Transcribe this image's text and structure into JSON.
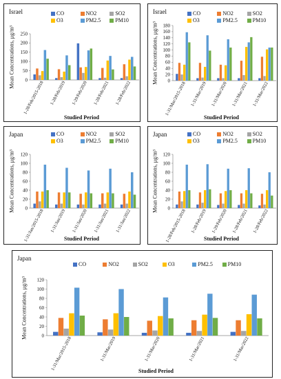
{
  "chart_data": [
    {
      "type": "bar",
      "country": "Israel",
      "title": "Israel",
      "categories": [
        "1-28/Feb/2015-2018",
        "1-28/Feb/2019",
        "1-29/Feb/2020",
        "1-28/Feb/2021",
        "1-28/Feb/2022"
      ],
      "series": [
        {
          "name": "CO",
          "color": "#4472C4",
          "values": [
            30,
            10,
            198,
            10,
            10
          ]
        },
        {
          "name": "NO2",
          "color": "#ED7D31",
          "values": [
            62,
            58,
            68,
            65,
            85
          ]
        },
        {
          "name": "SO2",
          "color": "#A5A5A5",
          "values": [
            25,
            15,
            38,
            12,
            20
          ]
        },
        {
          "name": "O3",
          "color": "#FFC000",
          "values": [
            48,
            45,
            70,
            105,
            110
          ]
        },
        {
          "name": "PM2.5",
          "color": "#5B9BD5",
          "values": [
            162,
            133,
            160,
            130,
            125
          ]
        },
        {
          "name": "PM10",
          "color": "#70AD47",
          "values": [
            115,
            80,
            170,
            57,
            73
          ]
        }
      ],
      "xlabel": "Studied Period",
      "ylabel": "Mean Concentrations, μg/m³",
      "ylim": [
        0,
        250
      ],
      "ticks": [
        0,
        50,
        100,
        150,
        200,
        250
      ],
      "legend": "top"
    },
    {
      "type": "bar",
      "country": "Israel",
      "title": "Israel",
      "categories": [
        "1-31/Mar/2015-2018",
        "1-31/Mar/2019",
        "1-31/Mar/2020",
        "1-31/Mar/2021",
        "1-31/Mar/2022"
      ],
      "series": [
        {
          "name": "CO",
          "color": "#4472C4",
          "values": [
            22,
            8,
            8,
            8,
            8
          ]
        },
        {
          "name": "NO2",
          "color": "#ED7D31",
          "values": [
            58,
            58,
            52,
            65,
            78
          ]
        },
        {
          "name": "SO2",
          "color": "#A5A5A5",
          "values": [
            20,
            10,
            8,
            18,
            15
          ]
        },
        {
          "name": "O3",
          "color": "#FFC000",
          "values": [
            52,
            45,
            50,
            110,
            102
          ]
        },
        {
          "name": "PM2.5",
          "color": "#5B9BD5",
          "values": [
            158,
            148,
            135,
            125,
            108
          ]
        },
        {
          "name": "PM10",
          "color": "#70AD47",
          "values": [
            125,
            98,
            108,
            142,
            108
          ]
        }
      ],
      "xlabel": "Studied Period",
      "ylabel": "Mean Concentrations, μg/m³",
      "ylim": [
        0,
        180
      ],
      "ticks": [
        0,
        20,
        40,
        60,
        80,
        100,
        120,
        140,
        160,
        180
      ],
      "legend": "top"
    },
    {
      "type": "bar",
      "country": "Japan",
      "title": "Japan",
      "categories": [
        "1-31/Jan/2015-2018",
        "1-31/Jan/2019",
        "1-31/Jan/2020",
        "1-31/Jan/2021",
        "1-31/Jan/2022"
      ],
      "series": [
        {
          "name": "CO",
          "color": "#4472C4",
          "values": [
            10,
            8,
            8,
            8,
            8
          ]
        },
        {
          "name": "NO2",
          "color": "#ED7D31",
          "values": [
            37,
            35,
            32,
            33,
            32
          ]
        },
        {
          "name": "SO2",
          "color": "#A5A5A5",
          "values": [
            15,
            10,
            8,
            10,
            10
          ]
        },
        {
          "name": "O3",
          "color": "#FFC000",
          "values": [
            37,
            35,
            35,
            35,
            37
          ]
        },
        {
          "name": "PM2.5",
          "color": "#5B9BD5",
          "values": [
            97,
            90,
            84,
            88,
            80
          ]
        },
        {
          "name": "PM10",
          "color": "#70AD47",
          "values": [
            40,
            35,
            33,
            33,
            30
          ]
        }
      ],
      "xlabel": "Studied Period",
      "ylabel": "Mean Concentrations, μg/m³",
      "ylim": [
        0,
        120
      ],
      "ticks": [
        0,
        20,
        40,
        60,
        80,
        100,
        120
      ],
      "legend": "top"
    },
    {
      "type": "bar",
      "country": "Japan",
      "title": "Japan",
      "categories": [
        "1-28/Feb/2015-2018",
        "1-28/Feb/2019",
        "1-29/Feb/2020",
        "1-28/Feb/2021",
        "1-28/Feb/2022"
      ],
      "series": [
        {
          "name": "CO",
          "color": "#4472C4",
          "values": [
            8,
            8,
            7,
            7,
            6
          ]
        },
        {
          "name": "NO2",
          "color": "#ED7D31",
          "values": [
            37,
            35,
            33,
            33,
            32
          ]
        },
        {
          "name": "SO2",
          "color": "#A5A5A5",
          "values": [
            15,
            12,
            10,
            10,
            8
          ]
        },
        {
          "name": "O3",
          "color": "#FFC000",
          "values": [
            38,
            40,
            38,
            40,
            40
          ]
        },
        {
          "name": "PM2.5",
          "color": "#5B9BD5",
          "values": [
            97,
            98,
            88,
            89,
            80
          ]
        },
        {
          "name": "PM10",
          "color": "#70AD47",
          "values": [
            40,
            42,
            40,
            33,
            28
          ]
        }
      ],
      "xlabel": "Studied Period",
      "ylabel": "Mean Concentrations, μg/m³",
      "ylim": [
        0,
        120
      ],
      "ticks": [
        0,
        20,
        40,
        60,
        80,
        100,
        120
      ],
      "legend": "top"
    },
    {
      "type": "bar",
      "country": "Japan",
      "title": "Japan",
      "categories": [
        "1-31/Mar/2015-2018",
        "1-31/Mar/2019",
        "1-31/Mar/2020",
        "1-31/Mar/2021",
        "1-31/Mar/2022"
      ],
      "series": [
        {
          "name": "CO",
          "color": "#4472C4",
          "values": [
            8,
            7,
            6,
            6,
            8
          ]
        },
        {
          "name": "NO2",
          "color": "#ED7D31",
          "values": [
            38,
            35,
            32,
            33,
            33
          ]
        },
        {
          "name": "SO2",
          "color": "#A5A5A5",
          "values": [
            15,
            13,
            11,
            10,
            10
          ]
        },
        {
          "name": "O3",
          "color": "#FFC000",
          "values": [
            48,
            48,
            42,
            45,
            46
          ]
        },
        {
          "name": "PM2.5",
          "color": "#5B9BD5",
          "values": [
            103,
            100,
            82,
            90,
            88
          ]
        },
        {
          "name": "PM10",
          "color": "#70AD47",
          "values": [
            43,
            40,
            37,
            38,
            37
          ]
        }
      ],
      "xlabel": "Studied Period",
      "ylabel": "Mean Concentrations, μg/m³",
      "ylim": [
        0,
        120
      ],
      "ticks": [
        0,
        20,
        40,
        60,
        80,
        100,
        120
      ],
      "legend": "top"
    }
  ]
}
